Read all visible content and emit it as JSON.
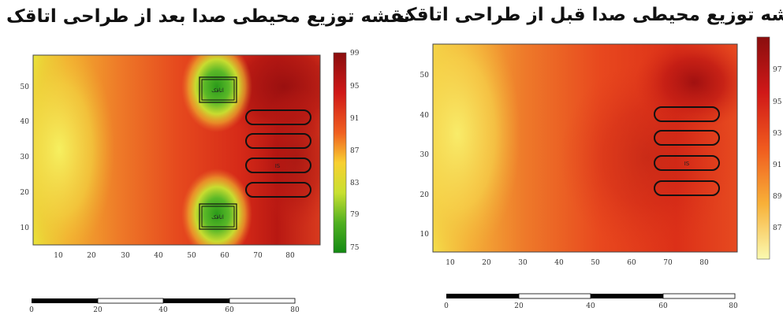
{
  "left_panel": {
    "title": "نقشه توزیع محیطی صدا بعد از طراحی اتاقک",
    "x_ticks": [
      "10",
      "20",
      "30",
      "40",
      "50",
      "60",
      "70",
      "80"
    ],
    "y_ticks": [
      "10",
      "20",
      "30",
      "40",
      "50"
    ],
    "colorbar_ticks": [
      "99",
      "95",
      "91",
      "87",
      "83",
      "79",
      "75"
    ],
    "enclosure_label": "اتاقک",
    "source_label": "IS",
    "scale_ticks": [
      "0",
      "20",
      "40",
      "60",
      "80"
    ]
  },
  "right_panel": {
    "title": "نقشه توزیع محیطی صدا قبل از طراحی اتاقک",
    "x_ticks": [
      "10",
      "20",
      "30",
      "40",
      "50",
      "60",
      "70",
      "80"
    ],
    "y_ticks": [
      "10",
      "20",
      "30",
      "40",
      "50"
    ],
    "colorbar_ticks": [
      "97",
      "95",
      "93",
      "91",
      "89",
      "87"
    ],
    "source_label": "IS",
    "scale_ticks": [
      "0",
      "20",
      "40",
      "60",
      "80"
    ]
  }
}
